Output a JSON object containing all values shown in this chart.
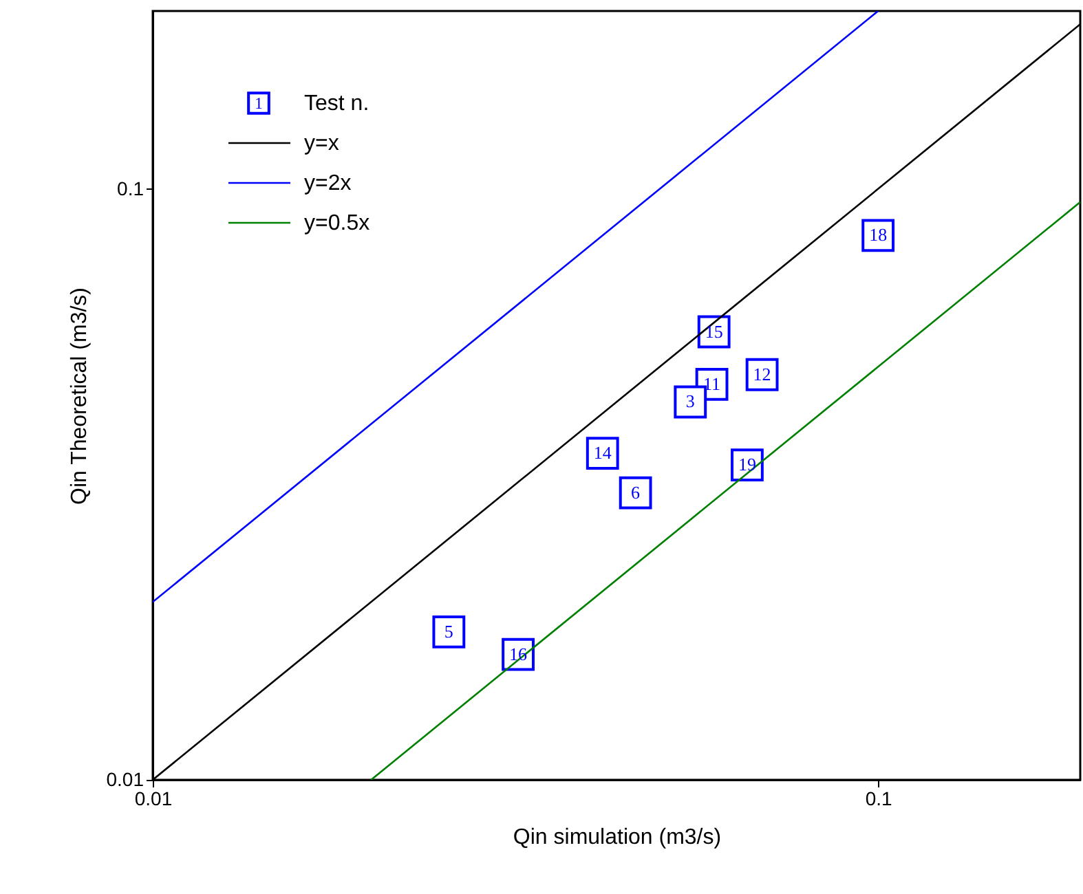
{
  "chart_data": {
    "type": "scatter",
    "xlabel": "Qin simulation (m3/s)",
    "ylabel": "Qin Theoretical (m3/s)",
    "log": "xy",
    "xlim": [
      0.01,
      0.19
    ],
    "ylim": [
      0.01,
      0.2
    ],
    "xticks": [
      0.01,
      0.1
    ],
    "yticks": [
      0.01,
      0.1
    ],
    "grid": false,
    "legend": "top left",
    "annotations": [
      "1",
      {
        "text": "18",
        "x": 0.1,
        "y": 0.0834
      },
      {
        "text": "15",
        "x": 0.0594,
        "y": 0.0573
      },
      {
        "text": "11",
        "x": 0.059,
        "y": 0.0467
      },
      {
        "text": "12",
        "x": 0.0692,
        "y": 0.0485
      },
      {
        "text": "3",
        "x": 0.0551,
        "y": 0.0436
      },
      {
        "text": "14",
        "x": 0.0417,
        "y": 0.0357
      },
      {
        "text": "6",
        "x": 0.0463,
        "y": 0.0306
      },
      {
        "text": "19",
        "x": 0.066,
        "y": 0.0341
      },
      {
        "text": "5",
        "x": 0.0256,
        "y": 0.0178
      },
      {
        "text": "16",
        "x": 0.0319,
        "y": 0.0163
      }
    ],
    "series": [
      {
        "name": "Test n.",
        "color": "#0000ff",
        "marker": "square",
        "x": [
          0.1,
          0.0594,
          0.059,
          0.0692,
          0.0551,
          0.0417,
          0.0463,
          0.066,
          0.0256,
          0.0319
        ],
        "values": [
          0.0834,
          0.0573,
          0.0467,
          0.0485,
          0.0436,
          0.0357,
          0.0306,
          0.0341,
          0.0178,
          0.0163
        ]
      },
      {
        "name": "y=x",
        "type": "line",
        "color": "#000000",
        "x": [
          0.01,
          0.19
        ],
        "values": [
          0.01,
          0.19
        ]
      },
      {
        "name": "y=2x",
        "type": "line",
        "color": "#0000ff",
        "x": [
          0.01,
          0.1
        ],
        "values": [
          0.02,
          0.2
        ]
      },
      {
        "name": "y=0.5x",
        "type": "line",
        "color": "#008000",
        "x": [
          0.02,
          0.19
        ],
        "values": [
          0.01,
          0.095
        ]
      }
    ]
  }
}
